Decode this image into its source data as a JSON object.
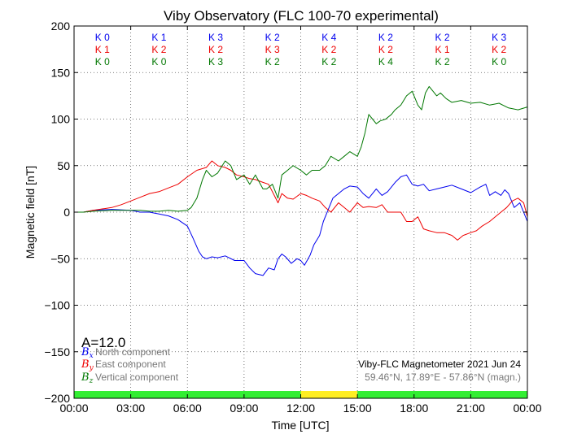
{
  "chart_data": {
    "type": "line",
    "title": "Viby Observatory (FLC 100-70 experimental)",
    "xlabel": "Time [UTC]",
    "ylabel": "Magnetic field [nT]",
    "xlim": [
      0,
      24
    ],
    "ylim": [
      -200,
      200
    ],
    "x_tick_labels": [
      "00:00",
      "03:00",
      "06:00",
      "09:00",
      "12:00",
      "15:00",
      "18:00",
      "21:00",
      "00:00"
    ],
    "y_ticks": [
      200,
      150,
      100,
      50,
      0,
      -50,
      -100,
      -150,
      -200
    ],
    "y_tick_labels": [
      "200",
      "150",
      "100",
      "50",
      "0",
      "−50",
      "−100",
      "−150",
      "−200"
    ],
    "grid": true,
    "k_index": {
      "x_component": [
        "K 0",
        "K 1",
        "K 3",
        "K 2",
        "K 4",
        "K 2",
        "K 2",
        "K 3"
      ],
      "y_component": [
        "K 1",
        "K 2",
        "K 2",
        "K 3",
        "K 2",
        "K 2",
        "K 1",
        "K 2"
      ],
      "z_component": [
        "K 0",
        "K 0",
        "K 3",
        "K 2",
        "K 2",
        "K 4",
        "K 2",
        "K 0"
      ]
    },
    "activity_bar": [
      {
        "from": 0,
        "to": 12,
        "color": "#33ee33"
      },
      {
        "from": 12,
        "to": 15,
        "color": "#ffee22"
      },
      {
        "from": 15,
        "to": 24,
        "color": "#33ee33"
      }
    ],
    "series": [
      {
        "symbol": "B",
        "subscript": "x",
        "name": "North component",
        "color": "#0000ee",
        "x": [
          0,
          0.5,
          1,
          2,
          3,
          3.5,
          4,
          4.5,
          5,
          5.5,
          6,
          6.3,
          6.6,
          6.8,
          7,
          7.3,
          7.6,
          8,
          8.5,
          9,
          9.3,
          9.6,
          10,
          10.3,
          10.6,
          10.8,
          11,
          11.2,
          11.5,
          11.8,
          12,
          12.2,
          12.5,
          12.7,
          13,
          13.2,
          13.5,
          13.7,
          14,
          14.3,
          14.6,
          15,
          15.3,
          15.6,
          16,
          16.3,
          16.6,
          17,
          17.3,
          17.6,
          17.9,
          18.2,
          18.5,
          18.8,
          19.2,
          19.6,
          20,
          20.5,
          21,
          21.5,
          21.8,
          22,
          22.3,
          22.6,
          22.8,
          23,
          23.3,
          23.6,
          24
        ],
        "y": [
          0,
          0,
          2,
          3,
          2,
          0,
          0,
          -2,
          -4,
          -8,
          -15,
          -28,
          -42,
          -48,
          -50,
          -48,
          -49,
          -47,
          -52,
          -52,
          -60,
          -66,
          -68,
          -60,
          -62,
          -50,
          -45,
          -48,
          -55,
          -50,
          -52,
          -57,
          -46,
          -35,
          -25,
          -10,
          5,
          15,
          20,
          25,
          28,
          27,
          20,
          15,
          25,
          18,
          22,
          32,
          38,
          40,
          30,
          28,
          30,
          23,
          25,
          27,
          29,
          25,
          21,
          27,
          30,
          18,
          22,
          18,
          24,
          20,
          5,
          10,
          -10
        ]
      },
      {
        "symbol": "B",
        "subscript": "y",
        "name": "East component",
        "color": "#ee0000",
        "x": [
          0,
          0.5,
          1,
          2,
          2.5,
          3,
          3.5,
          4,
          4.5,
          5,
          5.5,
          6,
          6.5,
          7,
          7.3,
          7.6,
          8,
          8.3,
          8.6,
          9,
          9.3,
          9.6,
          10,
          10.3,
          10.6,
          10.8,
          11,
          11.3,
          11.6,
          12,
          12.3,
          12.6,
          13,
          13.3,
          13.6,
          14,
          14.3,
          14.6,
          15,
          15.3,
          15.6,
          16,
          16.3,
          16.6,
          17,
          17.3,
          17.6,
          17.9,
          18.2,
          18.5,
          18.8,
          19.2,
          19.6,
          20,
          20.3,
          20.6,
          21,
          21.3,
          21.6,
          22,
          22.3,
          22.6,
          22.9,
          23.2,
          23.5,
          23.8,
          24
        ],
        "y": [
          0,
          0,
          2,
          5,
          8,
          12,
          16,
          20,
          22,
          26,
          30,
          38,
          45,
          48,
          55,
          50,
          48,
          45,
          40,
          38,
          36,
          35,
          32,
          30,
          18,
          10,
          20,
          15,
          14,
          20,
          18,
          15,
          12,
          5,
          0,
          10,
          5,
          0,
          10,
          5,
          6,
          5,
          8,
          0,
          0,
          0,
          -10,
          -10,
          -5,
          -18,
          -20,
          -22,
          -22,
          -25,
          -30,
          -25,
          -22,
          -20,
          -15,
          -10,
          -5,
          0,
          5,
          12,
          15,
          10,
          -5
        ]
      },
      {
        "symbol": "B",
        "subscript": "z",
        "name": "Vertical component",
        "color": "#007700",
        "x": [
          0,
          0.5,
          1,
          2,
          3,
          3.5,
          4,
          4.5,
          5,
          5.5,
          6,
          6.2,
          6.5,
          6.8,
          7,
          7.3,
          7.6,
          8,
          8.3,
          8.6,
          9,
          9.3,
          9.6,
          10,
          10.2,
          10.5,
          10.8,
          11,
          11.3,
          11.6,
          12,
          12.3,
          12.6,
          13,
          13.3,
          13.6,
          14,
          14.3,
          14.6,
          15,
          15.2,
          15.4,
          15.6,
          15.8,
          16,
          16.2,
          16.5,
          16.8,
          17,
          17.3,
          17.6,
          17.9,
          18.2,
          18.4,
          18.6,
          18.8,
          19.0,
          19.2,
          19.4,
          19.7,
          20,
          20.5,
          21,
          21.5,
          22,
          22.5,
          23,
          23.5,
          24
        ],
        "y": [
          0,
          0,
          1,
          2,
          2,
          2,
          1,
          1,
          2,
          1,
          2,
          5,
          15,
          35,
          45,
          38,
          42,
          55,
          50,
          35,
          40,
          30,
          40,
          25,
          25,
          30,
          15,
          40,
          45,
          50,
          45,
          40,
          45,
          45,
          50,
          60,
          55,
          60,
          65,
          60,
          70,
          85,
          105,
          100,
          95,
          98,
          100,
          105,
          110,
          115,
          125,
          130,
          115,
          110,
          128,
          135,
          130,
          125,
          128,
          122,
          118,
          120,
          117,
          118,
          115,
          117,
          112,
          110,
          113
        ]
      }
    ],
    "annotations": {
      "a_index": "A=12.0",
      "instrument": "Viby-FLC Magnetometer 2021 Jun 24",
      "location": "59.46°N, 17.89°E - 57.86°N (magn.)"
    }
  }
}
